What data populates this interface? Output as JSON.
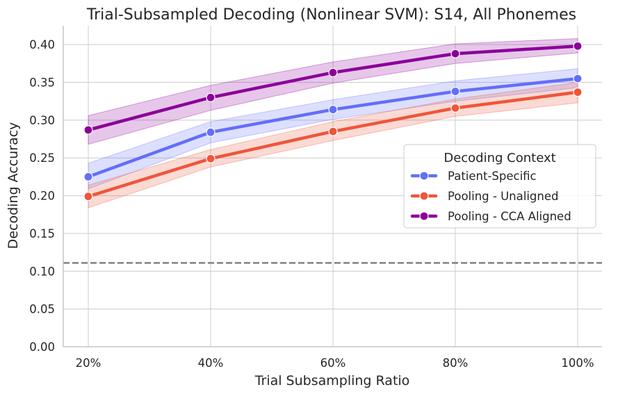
{
  "chart_data": {
    "type": "line",
    "title": "Trial-Subsampled Decoding (Nonlinear SVM): S14, All Phonemes",
    "xlabel": "Trial Subsampling Ratio",
    "ylabel": "Decoding Accuracy",
    "categories": [
      "20%",
      "40%",
      "60%",
      "80%",
      "100%"
    ],
    "ylim": [
      0,
      0.425
    ],
    "yticks": [
      "0.00",
      "0.05",
      "0.10",
      "0.15",
      "0.20",
      "0.25",
      "0.30",
      "0.35",
      "0.40"
    ],
    "ytick_values": [
      0,
      0.05,
      0.1,
      0.15,
      0.2,
      0.25,
      0.3,
      0.35,
      0.4
    ],
    "grid": true,
    "chance_level": 0.111,
    "legend": {
      "title": "Decoding Context",
      "placement": "center-right"
    },
    "series": [
      {
        "name": "Patient-Specific",
        "color": "#636efa",
        "values": [
          0.225,
          0.284,
          0.314,
          0.338,
          0.355
        ],
        "lower": [
          0.209,
          0.27,
          0.301,
          0.325,
          0.343
        ],
        "upper": [
          0.243,
          0.298,
          0.327,
          0.352,
          0.368
        ]
      },
      {
        "name": "Pooling - Unaligned",
        "color": "#ef553b",
        "values": [
          0.199,
          0.249,
          0.285,
          0.316,
          0.337
        ],
        "lower": [
          0.184,
          0.238,
          0.273,
          0.305,
          0.323
        ],
        "upper": [
          0.214,
          0.261,
          0.298,
          0.328,
          0.35
        ]
      },
      {
        "name": "Pooling - CCA Aligned",
        "color": "#8b0099",
        "values": [
          0.287,
          0.33,
          0.363,
          0.388,
          0.398
        ],
        "lower": [
          0.268,
          0.313,
          0.349,
          0.375,
          0.389
        ],
        "upper": [
          0.306,
          0.346,
          0.377,
          0.401,
          0.408
        ]
      }
    ]
  }
}
